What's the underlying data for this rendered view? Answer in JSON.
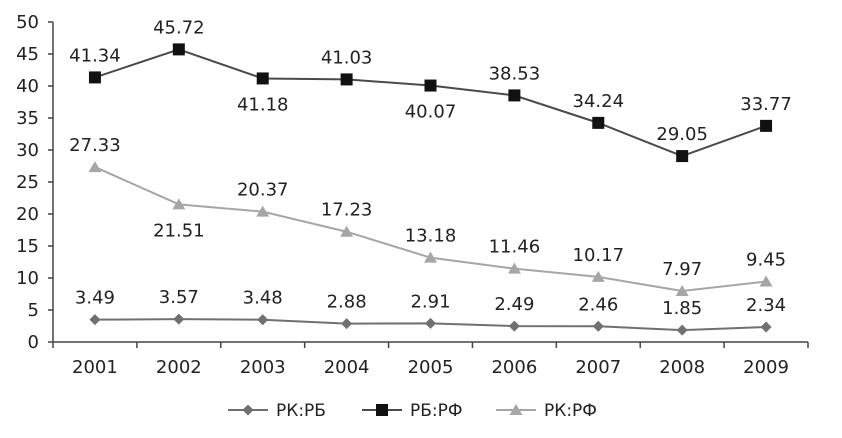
{
  "chart_data": {
    "type": "line",
    "title": "",
    "xlabel": "",
    "ylabel": "",
    "categories": [
      "2001",
      "2002",
      "2003",
      "2004",
      "2005",
      "2006",
      "2007",
      "2008",
      "2009"
    ],
    "ylim": [
      0,
      50
    ],
    "yticks": [
      0,
      5,
      10,
      15,
      20,
      25,
      30,
      35,
      40,
      45,
      50
    ],
    "grid": false,
    "legend_position": "bottom",
    "series": [
      {
        "name": "РК:РБ",
        "marker": "diamond",
        "color": "#707070",
        "values": [
          3.49,
          3.57,
          3.48,
          2.88,
          2.91,
          2.49,
          2.46,
          1.85,
          2.34
        ],
        "labels": [
          "3.49",
          "3.57",
          "3.48",
          "2.88",
          "2.91",
          "2.49",
          "2.46",
          "1.85",
          "2.34"
        ],
        "label_pos": [
          "above",
          "above",
          "above",
          "above",
          "above",
          "above",
          "above",
          "above",
          "above"
        ]
      },
      {
        "name": "РБ:РФ",
        "marker": "square",
        "color": "#4a4a4a",
        "values": [
          41.34,
          45.72,
          41.18,
          41.03,
          40.07,
          38.53,
          34.24,
          29.05,
          33.77
        ],
        "labels": [
          "41.34",
          "45.72",
          "41.18",
          "41.03",
          "40.07",
          "38.53",
          "34.24",
          "29.05",
          "33.77"
        ],
        "label_pos": [
          "above",
          "above",
          "below",
          "above",
          "below",
          "above",
          "above",
          "above",
          "above"
        ]
      },
      {
        "name": "РК:РФ",
        "marker": "triangle",
        "color": "#a6a6a6",
        "values": [
          27.33,
          21.51,
          20.37,
          17.23,
          13.18,
          11.46,
          10.17,
          7.97,
          9.45
        ],
        "labels": [
          "27.33",
          "21.51",
          "20.37",
          "17.23",
          "13.18",
          "11.46",
          "10.17",
          "7.97",
          "9.45"
        ],
        "label_pos": [
          "above",
          "below",
          "above",
          "above",
          "above",
          "above",
          "above",
          "above",
          "above"
        ]
      }
    ]
  }
}
